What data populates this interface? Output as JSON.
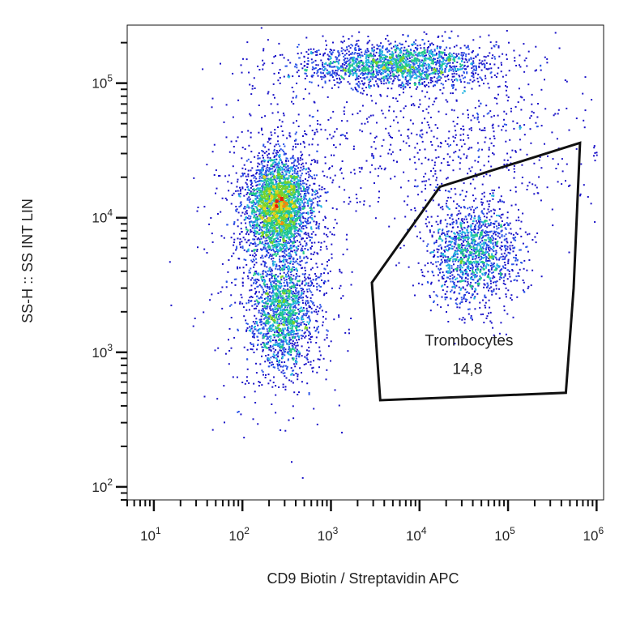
{
  "chart_data": {
    "type": "scatter",
    "subtype": "flow-cytometry density dot plot",
    "xlabel": "CD9 Biotin / Streptavidin APC",
    "ylabel": "SS-H :: SS INT LIN",
    "x_scale": "log",
    "y_scale": "log",
    "xlim": [
      5,
      1200000
    ],
    "ylim": [
      80,
      270000
    ],
    "x_ticks": [
      {
        "value": 10,
        "base": "10",
        "exp": "1"
      },
      {
        "value": 100,
        "base": "10",
        "exp": "2"
      },
      {
        "value": 1000,
        "base": "10",
        "exp": "3"
      },
      {
        "value": 10000,
        "base": "10",
        "exp": "4"
      },
      {
        "value": 100000,
        "base": "10",
        "exp": "5"
      },
      {
        "value": 1000000,
        "base": "10",
        "exp": "6"
      }
    ],
    "y_ticks": [
      {
        "value": 100,
        "base": "10",
        "exp": "2"
      },
      {
        "value": 1000,
        "base": "10",
        "exp": "3"
      },
      {
        "value": 10000,
        "base": "10",
        "exp": "4"
      },
      {
        "value": 100000,
        "base": "10",
        "exp": "5"
      }
    ],
    "colormap": [
      "#1a12c8",
      "#2b55e8",
      "#22b4e0",
      "#22c88a",
      "#7ad22a",
      "#e8d21a",
      "#f08a12",
      "#e81e0e"
    ],
    "populations": [
      {
        "x_center": 250,
        "y_center": 12500,
        "x_spread_dec": 0.18,
        "y_spread_dec": 0.18,
        "weight": 0.3
      },
      {
        "x_center": 280,
        "y_center": 2000,
        "x_spread_dec": 0.18,
        "y_spread_dec": 0.22,
        "weight": 0.16
      },
      {
        "x_center": 5000,
        "y_center": 140000,
        "x_spread_dec": 0.55,
        "y_spread_dec": 0.08,
        "weight": 0.2
      },
      {
        "x_center": 40000,
        "y_center": 5500,
        "x_spread_dec": 0.25,
        "y_spread_dec": 0.2,
        "weight": 0.16
      },
      {
        "x_center": 250,
        "y_center": 6000,
        "x_spread_dec": 0.35,
        "y_spread_dec": 0.55,
        "weight": 0.1
      },
      {
        "x_center": 20000,
        "y_center": 40000,
        "x_spread_dec": 0.9,
        "y_spread_dec": 0.35,
        "weight": 0.08
      }
    ],
    "gates": [
      {
        "name": "Trombocytes",
        "value": "14,8",
        "vertices": [
          [
            2900,
            3300
          ],
          [
            17000,
            17000
          ],
          [
            650000,
            36000
          ],
          [
            550000,
            3000
          ],
          [
            450000,
            500
          ],
          [
            3600,
            440
          ]
        ]
      }
    ]
  }
}
